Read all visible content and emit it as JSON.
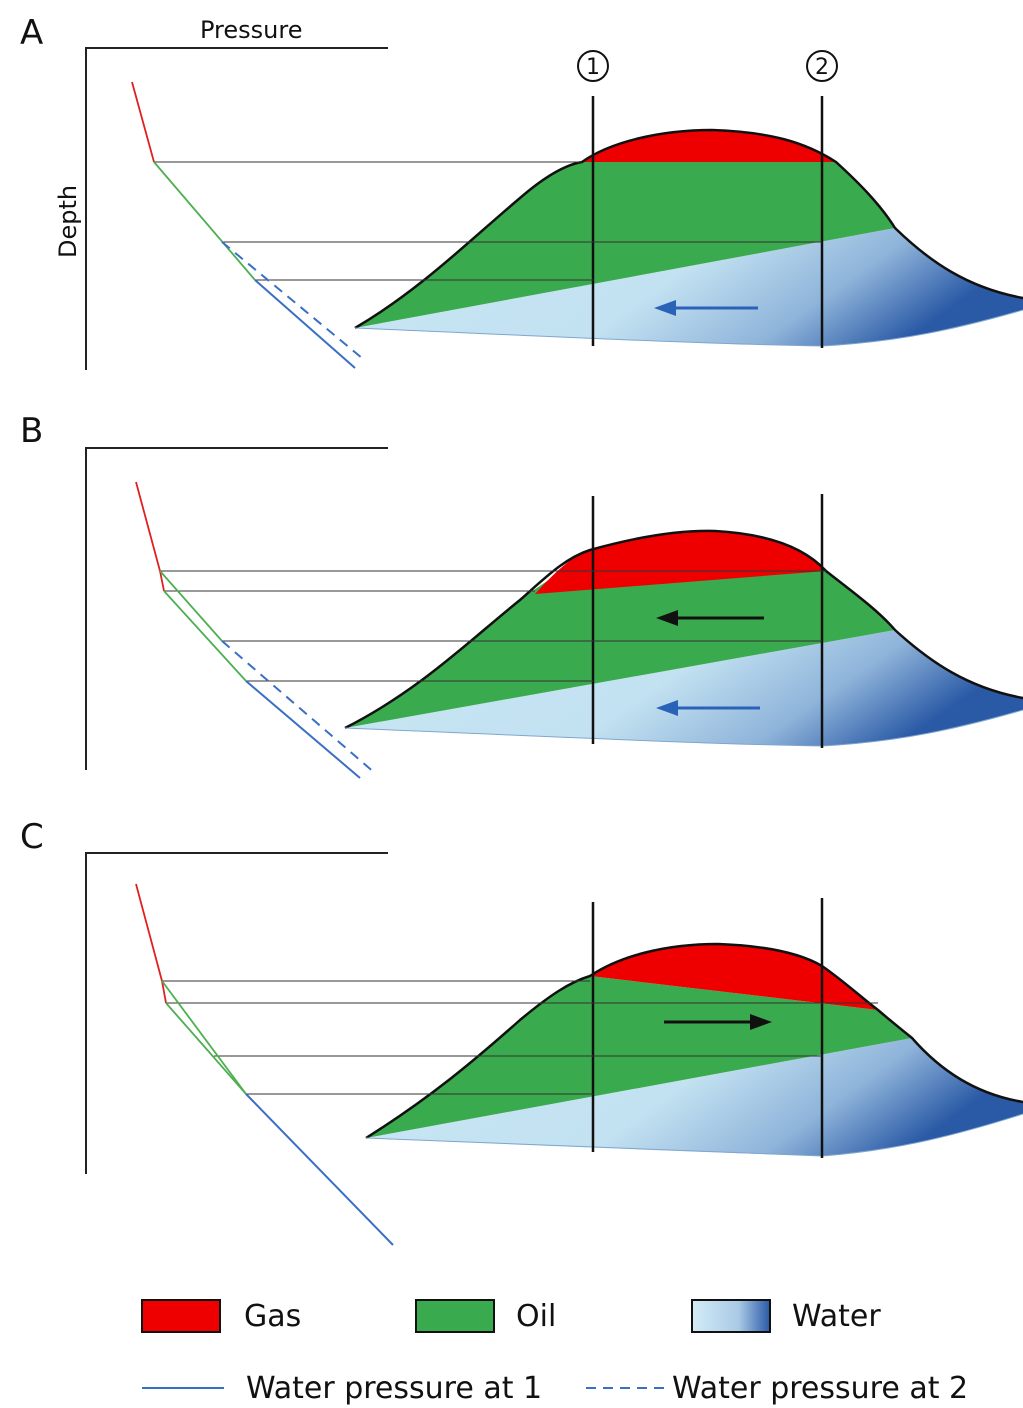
{
  "panels": [
    {
      "id": "A",
      "label": "A",
      "axis_x_label": "Pressure",
      "axis_y_label": "Depth",
      "flow_arrows": [
        "water"
      ],
      "oil_arrow": "none"
    },
    {
      "id": "B",
      "label": "B",
      "axis_x_label": "",
      "axis_y_label": "",
      "flow_arrows": [
        "oil",
        "water"
      ],
      "oil_arrow": "left"
    },
    {
      "id": "C",
      "label": "C",
      "axis_x_label": "",
      "axis_y_label": "",
      "flow_arrows": [
        "oil"
      ],
      "oil_arrow": "right"
    }
  ],
  "wells": [
    {
      "id": "1",
      "label": "1"
    },
    {
      "id": "2",
      "label": "2"
    }
  ],
  "legend": {
    "gas": "Gas",
    "oil": "Oil",
    "water": "Water",
    "water_pressure_1": "Water pressure at 1",
    "water_pressure_2": "Water pressure at 2"
  },
  "colors": {
    "gas": "#ee0000",
    "oil": "#3aaa4e",
    "water_light": "#c6e6f3",
    "water_dark": "#2a5aa6",
    "gas_gradient_line": "#e02020",
    "oil_gradient_line": "#4caf50",
    "water_line": "#3a6fc4",
    "contact_lines": "#333333"
  }
}
